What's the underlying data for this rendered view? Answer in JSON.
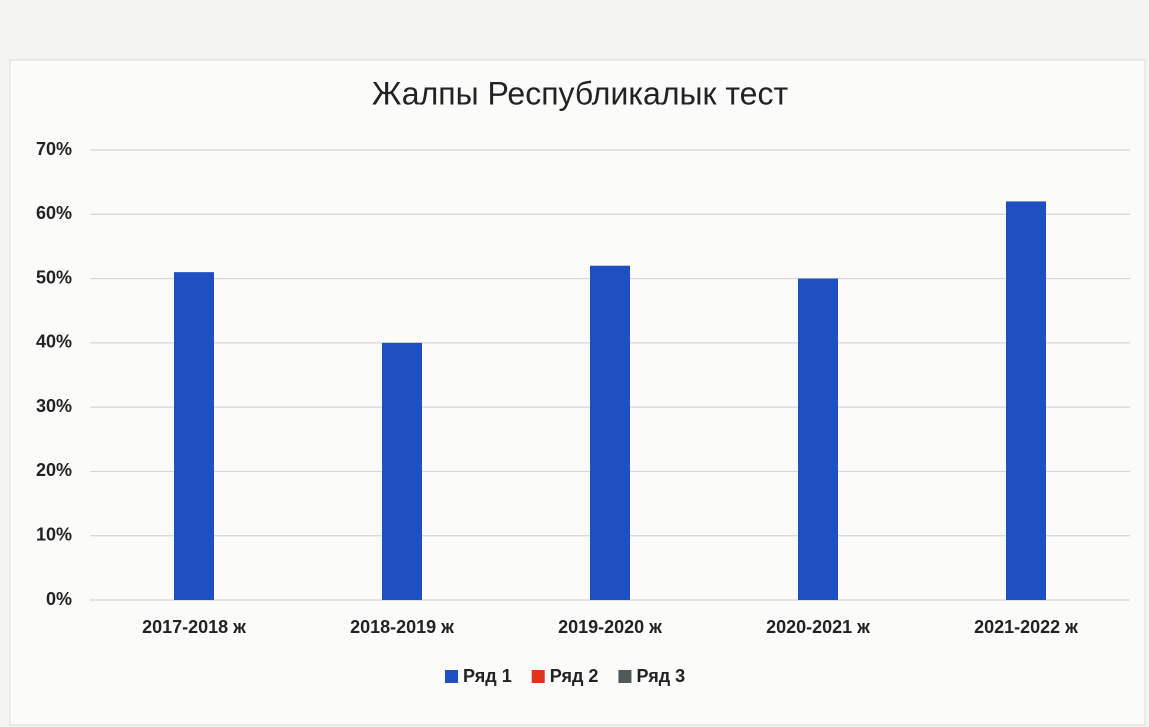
{
  "chart_data": {
    "type": "bar",
    "title": "Жалпы Республикалык тест",
    "categories": [
      "2017-2018 ж",
      "2018-2019 ж",
      "2019-2020 ж",
      "2020-2021 ж",
      "2021-2022 ж"
    ],
    "series": [
      {
        "name": "Ряд 1",
        "color": "#1f4fc0",
        "values": [
          51,
          40,
          52,
          50,
          62
        ]
      },
      {
        "name": "Ряд 2",
        "color": "#e0341c",
        "values": [
          null,
          null,
          null,
          null,
          null
        ]
      },
      {
        "name": "Ряд 3",
        "color": "#4f5a58",
        "values": [
          null,
          null,
          null,
          null,
          null
        ]
      }
    ],
    "ylim": [
      0,
      70
    ],
    "yticks": [
      {
        "value": 0,
        "label": "0%"
      },
      {
        "value": 10,
        "label": "10%"
      },
      {
        "value": 20,
        "label": "20%"
      },
      {
        "value": 30,
        "label": "30%"
      },
      {
        "value": 40,
        "label": "40%"
      },
      {
        "value": 50,
        "label": "50%"
      },
      {
        "value": 60,
        "label": "60%"
      },
      {
        "value": 70,
        "label": "70%"
      }
    ],
    "grid": true,
    "legend": "bottom"
  }
}
